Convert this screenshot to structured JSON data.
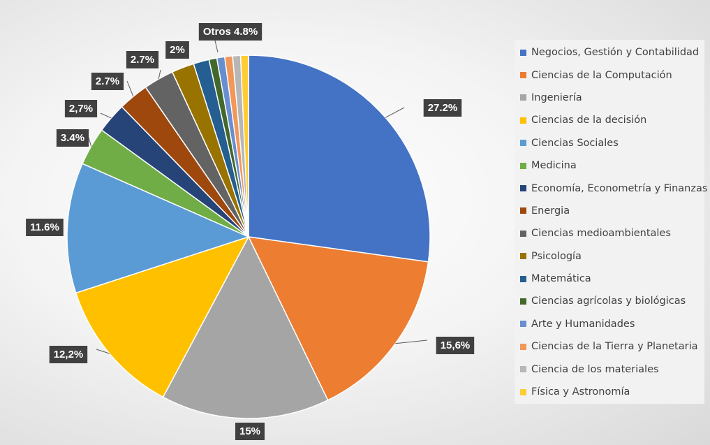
{
  "chart_data": {
    "type": "pie",
    "title": "",
    "start_angle_deg": 0,
    "direction": "clockwise",
    "legend_position": "right",
    "slices": [
      {
        "name": "Negocios, Gestión y Contabilidad",
        "value": 27.2,
        "label": "27.2%",
        "color": "#4472C4"
      },
      {
        "name": "Ciencias de la Computación",
        "value": 15.6,
        "label": "15,6%",
        "color": "#ED7D31"
      },
      {
        "name": "Ingeniería",
        "value": 15.0,
        "label": "15%",
        "color": "#A5A5A5"
      },
      {
        "name": "Ciencias de la decisión",
        "value": 12.2,
        "label": "12,2%",
        "color": "#FFC000"
      },
      {
        "name": "Ciencias Sociales",
        "value": 11.6,
        "label": "11.6%",
        "color": "#5B9BD5"
      },
      {
        "name": "Medicina",
        "value": 3.4,
        "label": "3.4%",
        "color": "#70AD47"
      },
      {
        "name": "Economía, Econometría y Finanzas",
        "value": 2.7,
        "label": "2,7%",
        "color": "#264478"
      },
      {
        "name": "Energia",
        "value": 2.7,
        "label": "2.7%",
        "color": "#9E480E"
      },
      {
        "name": "Ciencias medioambientales",
        "value": 2.7,
        "label": "2.7%",
        "color": "#636363"
      },
      {
        "name": "Psicología",
        "value": 2.0,
        "label": "2%",
        "color": "#997300"
      },
      {
        "name": "Matemática",
        "value": 1.4,
        "label": "",
        "color": "#255E91"
      },
      {
        "name": "Ciencias agrícolas y biológicas",
        "value": 0.7,
        "label": "",
        "color": "#43682B"
      },
      {
        "name": "Arte y Humanidades",
        "value": 0.7,
        "label": "",
        "color": "#698ED0"
      },
      {
        "name": "Ciencias de la Tierra y Planetaria",
        "value": 0.7,
        "label": "",
        "color": "#F1975A"
      },
      {
        "name": "Ciencia de los materiales",
        "value": 0.7,
        "label": "",
        "color": "#B7B7B7"
      },
      {
        "name": "Física y Astronomía",
        "value": 0.7,
        "label": "",
        "color": "#FFCD33"
      }
    ],
    "group_labels": [
      {
        "text": "Otros 4.8%"
      }
    ]
  }
}
